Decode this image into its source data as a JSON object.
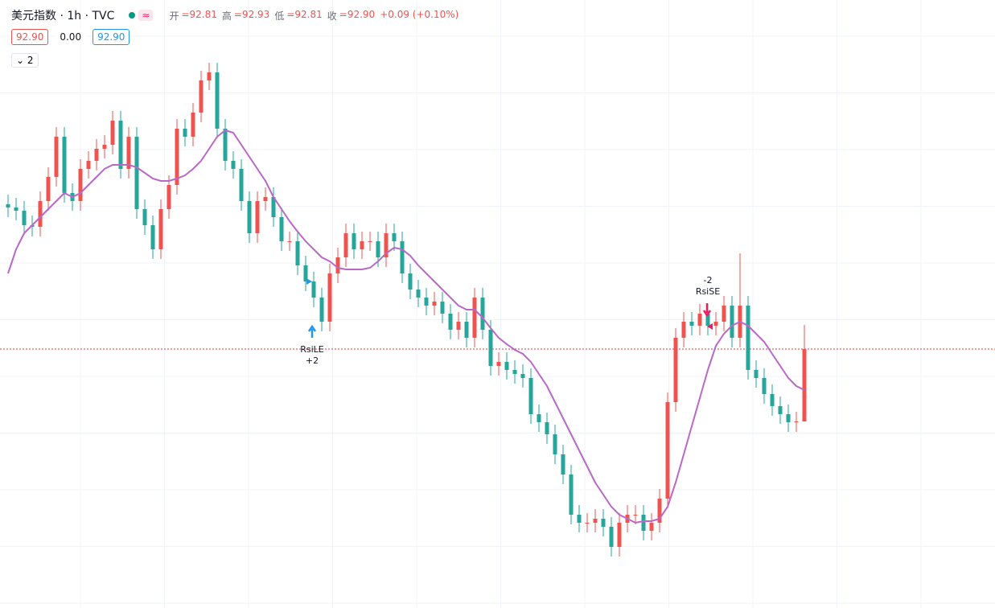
{
  "chart_data": {
    "type": "candlestick",
    "title": "美元指数 · 1h · TVC",
    "status_icon": "≈",
    "legend_items": [
      {
        "label": "开",
        "value": "=92.81"
      },
      {
        "label": "高",
        "value": "=92.93"
      },
      {
        "label": "低",
        "value": "=92.81"
      },
      {
        "label": "收",
        "value": "=92.90"
      }
    ],
    "change": "+0.09 (+0.10%)",
    "badges": [
      "92.90",
      "0.00",
      "92.90"
    ],
    "collapse_label": "2",
    "up_color": "#ef5350",
    "down_color": "#26a69a",
    "ylim": [
      92.578,
      93.294
    ],
    "last_price": 92.9,
    "last_price_color": "#e53935",
    "ohlc": {
      "open": [
        93.08,
        93.076,
        93.072,
        93.054,
        93.052,
        93.084,
        93.114,
        93.164,
        93.094,
        93.084,
        93.124,
        93.134,
        93.149,
        93.154,
        93.184,
        93.124,
        93.164,
        93.074,
        93.054,
        93.024,
        93.074,
        93.104,
        93.174,
        93.164,
        93.194,
        93.234,
        93.244,
        93.174,
        93.134,
        93.124,
        93.084,
        93.044,
        93.084,
        93.089,
        93.064,
        93.034,
        93.034,
        93.004,
        92.984,
        92.964,
        92.934,
        92.994,
        93.014,
        93.044,
        93.024,
        93.034,
        93.034,
        93.014,
        93.044,
        93.034,
        92.994,
        92.974,
        92.964,
        92.954,
        92.959,
        92.944,
        92.924,
        92.934,
        92.914,
        92.964,
        92.924,
        92.879,
        92.884,
        92.874,
        92.869,
        92.864,
        92.819,
        92.809,
        92.794,
        92.769,
        92.744,
        92.694,
        92.684,
        92.684,
        92.689,
        92.679,
        92.654,
        92.684,
        92.694,
        92.694,
        92.674,
        92.684,
        92.714,
        92.834,
        92.914,
        92.934,
        92.929,
        92.944,
        92.929,
        92.934,
        92.954,
        92.914,
        92.954,
        92.874,
        92.864,
        92.844,
        92.829,
        92.819,
        92.809,
        92.81
      ],
      "high": [
        93.092,
        93.088,
        93.084,
        93.066,
        93.096,
        93.126,
        93.176,
        93.176,
        93.106,
        93.136,
        93.146,
        93.161,
        93.166,
        93.196,
        93.196,
        93.176,
        93.176,
        93.086,
        93.066,
        93.086,
        93.116,
        93.186,
        93.186,
        93.206,
        93.246,
        93.256,
        93.256,
        93.186,
        93.146,
        93.136,
        93.096,
        93.096,
        93.101,
        93.101,
        93.076,
        93.046,
        93.046,
        93.016,
        92.996,
        92.976,
        93.006,
        93.026,
        93.056,
        93.056,
        93.046,
        93.046,
        93.046,
        93.056,
        93.056,
        93.046,
        93.006,
        92.986,
        92.976,
        92.971,
        92.971,
        92.956,
        92.946,
        92.946,
        92.976,
        92.976,
        92.936,
        92.896,
        92.896,
        92.886,
        92.881,
        92.876,
        92.831,
        92.821,
        92.806,
        92.781,
        92.756,
        92.706,
        92.696,
        92.701,
        92.701,
        92.691,
        92.696,
        92.706,
        92.706,
        92.706,
        92.696,
        92.726,
        92.846,
        92.926,
        92.946,
        92.946,
        92.956,
        92.956,
        92.946,
        92.966,
        92.966,
        93.019,
        92.966,
        92.886,
        92.876,
        92.856,
        92.841,
        92.831,
        92.822,
        92.93
      ],
      "low": [
        93.064,
        93.06,
        93.042,
        93.04,
        93.04,
        93.072,
        93.102,
        93.082,
        93.072,
        93.072,
        93.112,
        93.122,
        93.137,
        93.142,
        93.112,
        93.112,
        93.062,
        93.042,
        93.012,
        93.012,
        93.062,
        93.092,
        93.152,
        93.152,
        93.182,
        93.222,
        93.162,
        93.122,
        93.112,
        93.072,
        93.032,
        93.032,
        93.072,
        93.052,
        93.022,
        93.022,
        92.992,
        92.972,
        92.952,
        92.922,
        92.922,
        92.982,
        93.002,
        93.012,
        93.012,
        93.022,
        93.002,
        93.002,
        93.022,
        92.982,
        92.962,
        92.952,
        92.942,
        92.942,
        92.932,
        92.912,
        92.912,
        92.902,
        92.902,
        92.912,
        92.867,
        92.867,
        92.862,
        92.857,
        92.852,
        92.807,
        92.797,
        92.782,
        92.757,
        92.732,
        92.682,
        92.672,
        92.672,
        92.672,
        92.667,
        92.642,
        92.642,
        92.672,
        92.682,
        92.662,
        92.662,
        92.672,
        92.702,
        92.822,
        92.902,
        92.917,
        92.917,
        92.917,
        92.917,
        92.922,
        92.902,
        92.902,
        92.862,
        92.852,
        92.832,
        92.817,
        92.807,
        92.797,
        92.797,
        92.81
      ],
      "close": [
        93.076,
        93.072,
        93.054,
        93.052,
        93.084,
        93.114,
        93.164,
        93.094,
        93.084,
        93.124,
        93.134,
        93.149,
        93.154,
        93.184,
        93.124,
        93.164,
        93.074,
        93.054,
        93.024,
        93.074,
        93.104,
        93.174,
        93.164,
        93.194,
        93.234,
        93.244,
        93.174,
        93.134,
        93.124,
        93.084,
        93.044,
        93.084,
        93.089,
        93.064,
        93.034,
        93.034,
        93.004,
        92.984,
        92.964,
        92.934,
        92.994,
        93.014,
        93.044,
        93.024,
        93.034,
        93.034,
        93.014,
        93.044,
        93.034,
        92.994,
        92.974,
        92.964,
        92.954,
        92.959,
        92.944,
        92.924,
        92.934,
        92.914,
        92.964,
        92.924,
        92.879,
        92.884,
        92.874,
        92.869,
        92.864,
        92.819,
        92.809,
        92.794,
        92.769,
        92.744,
        92.694,
        92.684,
        92.684,
        92.689,
        92.679,
        92.654,
        92.684,
        92.694,
        92.694,
        92.674,
        92.684,
        92.714,
        92.834,
        92.914,
        92.934,
        92.929,
        92.944,
        92.929,
        92.934,
        92.954,
        92.914,
        92.954,
        92.874,
        92.864,
        92.844,
        92.829,
        92.819,
        92.809,
        92.81,
        92.9
      ]
    },
    "ma": {
      "color": "#ba68c8",
      "values": [
        92.994,
        93.024,
        93.044,
        93.054,
        93.064,
        93.074,
        93.084,
        93.094,
        93.089,
        93.094,
        93.104,
        93.114,
        93.124,
        93.129,
        93.129,
        93.129,
        93.126,
        93.119,
        93.112,
        93.109,
        93.109,
        93.112,
        93.116,
        93.124,
        93.134,
        93.149,
        93.164,
        93.172,
        93.169,
        93.154,
        93.139,
        93.124,
        93.109,
        93.089,
        93.074,
        93.059,
        93.046,
        93.034,
        93.024,
        93.014,
        93.009,
        93.001,
        92.999,
        92.999,
        92.999,
        93.001,
        93.009,
        93.019,
        93.026,
        93.024,
        93.016,
        93.004,
        92.994,
        92.984,
        92.974,
        92.964,
        92.954,
        92.949,
        92.949,
        92.939,
        92.926,
        92.914,
        92.906,
        92.899,
        92.894,
        92.884,
        92.869,
        92.854,
        92.834,
        92.814,
        92.794,
        92.774,
        92.754,
        92.734,
        92.719,
        92.704,
        92.694,
        92.689,
        92.684,
        92.686,
        92.686,
        92.689,
        92.704,
        92.734,
        92.769,
        92.804,
        92.839,
        92.874,
        92.904,
        92.919,
        92.929,
        92.934,
        92.929,
        92.919,
        92.909,
        92.894,
        92.879,
        92.864,
        92.854,
        92.849
      ]
    },
    "signals": [
      {
        "label": "RsiLE",
        "amount": "+2",
        "color": "#2196f3"
      },
      {
        "label": "RsiSE",
        "amount": "-2",
        "color": "#e91e63"
      }
    ]
  }
}
